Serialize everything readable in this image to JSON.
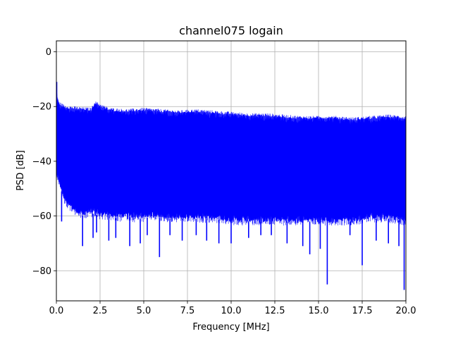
{
  "chart_data": {
    "type": "line",
    "title": "channel075 logain",
    "xlabel": "Frequency [MHz]",
    "ylabel": "PSD [dB]",
    "xlim": [
      0,
      20
    ],
    "ylim": [
      -91,
      4
    ],
    "xticks": [
      0,
      2.5,
      5,
      7.5,
      10,
      12.5,
      15,
      17.5,
      20
    ],
    "xtick_labels": [
      "0.0",
      "2.5",
      "5.0",
      "7.5",
      "10.0",
      "12.5",
      "15.0",
      "17.5",
      "20.0"
    ],
    "yticks": [
      0,
      -20,
      -40,
      -60,
      -80
    ],
    "ytick_labels": [
      "0",
      "−20",
      "−40",
      "−60",
      "−80"
    ],
    "grid": true,
    "series": [
      {
        "color": "#0000ff",
        "description": "dense noisy PSD trace; band shown by upper and lower envelopes",
        "upper_envelope": {
          "x": [
            0,
            0.05,
            0.2,
            0.5,
            1,
            2,
            2.2,
            3,
            4,
            5,
            6,
            7,
            8,
            9,
            10,
            11,
            12,
            13,
            14,
            15,
            16,
            17,
            18,
            19,
            20
          ],
          "y": [
            -11,
            -17,
            -19,
            -20,
            -20.5,
            -21,
            -18.5,
            -21,
            -21.5,
            -21,
            -21.5,
            -22,
            -21.5,
            -22,
            -22.5,
            -23,
            -23,
            -23.5,
            -24,
            -24,
            -24,
            -24.5,
            -24,
            -23.5,
            -24
          ]
        },
        "lower_envelope": {
          "x": [
            0,
            0.5,
            1,
            1.5,
            2,
            2.5,
            3,
            3.5,
            4,
            4.5,
            5,
            5.5,
            6,
            7,
            8,
            9,
            10,
            11,
            12,
            13,
            14,
            15,
            16,
            17,
            18,
            19,
            20
          ],
          "y": [
            -45,
            -55,
            -58,
            -60,
            -59,
            -60,
            -60,
            -61,
            -60,
            -61,
            -61,
            -60,
            -61,
            -61,
            -61,
            -61,
            -62,
            -62,
            -62,
            -62,
            -62,
            -62,
            -62,
            -62,
            -61,
            -61,
            -62
          ]
        },
        "dips": {
          "x": [
            0.3,
            1.5,
            2.1,
            2.3,
            3.0,
            3.4,
            4.2,
            4.8,
            5.2,
            5.9,
            6.5,
            7.2,
            8.0,
            8.6,
            9.3,
            10.0,
            11.0,
            11.7,
            12.3,
            13.2,
            14.1,
            14.5,
            15.1,
            15.5,
            16.8,
            17.5,
            18.3,
            19.0,
            19.6,
            19.9
          ],
          "y": [
            -62,
            -71,
            -68,
            -66,
            -69,
            -68,
            -71,
            -70,
            -67,
            -75,
            -67,
            -69,
            -67,
            -69,
            -70,
            -70,
            -68,
            -67,
            -67,
            -70,
            -71,
            -74,
            -72,
            -85,
            -67,
            -78,
            -69,
            -70,
            -71,
            -87
          ]
        }
      }
    ]
  }
}
